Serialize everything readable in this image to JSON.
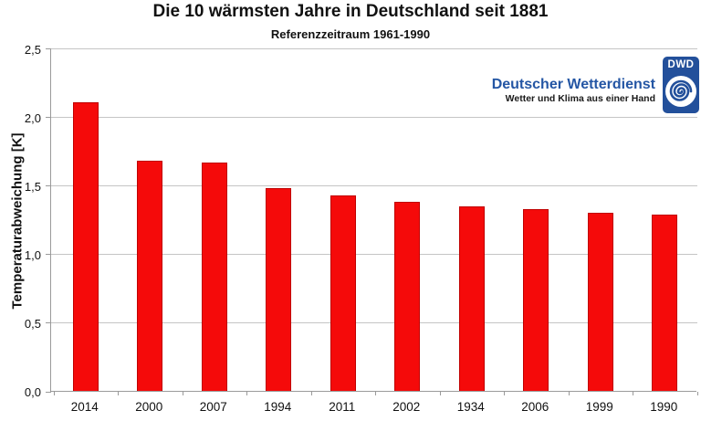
{
  "header": {
    "title": "Die 10 wärmsten Jahre in Deutschland seit 1881",
    "subtitle": "Referenzzeitraum 1961-1990"
  },
  "brand": {
    "org_name": "Deutscher Wetterdienst",
    "tagline": "Wetter und Klima aus einer Hand",
    "logo_acronym": "DWD",
    "brand_color": "#2456a4",
    "logo_color": "#23509b"
  },
  "chart_data": {
    "type": "bar",
    "title": "Die 10 wärmsten Jahre in Deutschland seit 1881",
    "subtitle": "Referenzzeitraum 1961-1990",
    "categories": [
      "2014",
      "2000",
      "2007",
      "1994",
      "2011",
      "2002",
      "1934",
      "2006",
      "1999",
      "1990"
    ],
    "values": [
      2.11,
      1.68,
      1.67,
      1.48,
      1.43,
      1.38,
      1.35,
      1.33,
      1.3,
      1.29
    ],
    "xlabel": "",
    "ylabel": "Temperaturabweichung [K]",
    "ylim": [
      0.0,
      2.5
    ],
    "ytick_step": 0.5,
    "ytick_labels": [
      "0,0",
      "0,5",
      "1,0",
      "1,5",
      "2,0",
      "2,5"
    ],
    "grid": true,
    "legend": "none",
    "bar_color": "#f50a0a",
    "bar_border_color": "#c00000",
    "gridline_color": "#c5c5c5",
    "axis_color": "#9a9a9a"
  }
}
